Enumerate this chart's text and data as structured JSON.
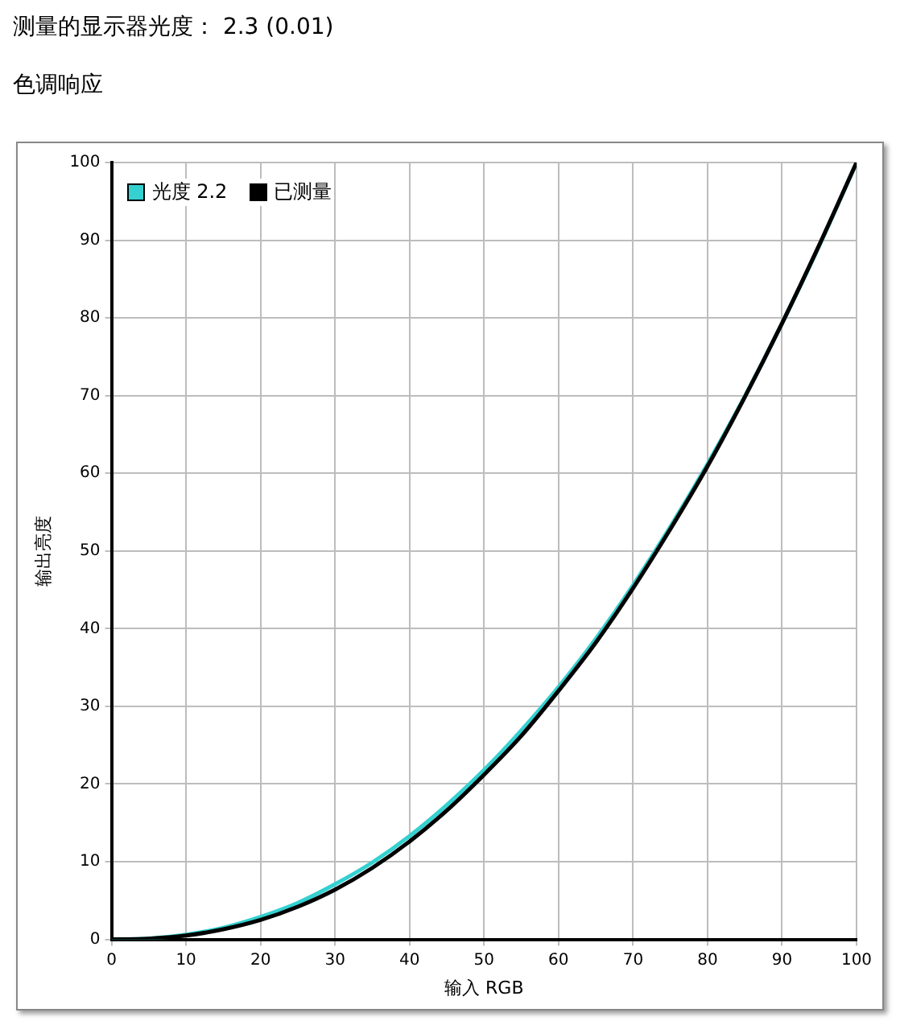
{
  "chart_data": {
    "type": "line",
    "title": "测量的显示器光度： 2.3 (0.01)",
    "subtitle": "色调响应",
    "xlabel": "输入 RGB",
    "ylabel": "输出亮度",
    "x": [
      0,
      5,
      10,
      15,
      20,
      25,
      30,
      35,
      40,
      45,
      50,
      55,
      60,
      65,
      70,
      75,
      80,
      85,
      90,
      95,
      100
    ],
    "series": [
      {
        "name": "光度 2.2",
        "color": "#35d0d0",
        "values": [
          0,
          0.1,
          0.6,
          1.5,
          2.9,
          4.7,
          7.1,
          9.9,
          13.3,
          17.3,
          21.8,
          26.9,
          32.5,
          38.7,
          45.6,
          53.1,
          61.2,
          69.9,
          79.3,
          89.3,
          100
        ]
      },
      {
        "name": "已测量",
        "color": "#000000",
        "values": [
          0,
          0.1,
          0.5,
          1.3,
          2.5,
          4.2,
          6.4,
          9.2,
          12.6,
          16.6,
          21.2,
          26.2,
          32,
          38.2,
          45.2,
          52.8,
          60.9,
          69.8,
          79.3,
          89.4,
          100
        ]
      }
    ],
    "xlim": [
      0,
      100
    ],
    "xticks": [
      0,
      10,
      20,
      30,
      40,
      50,
      60,
      70,
      80,
      90,
      100
    ],
    "ylim": [
      0,
      100
    ],
    "yticks": [
      0,
      10,
      20,
      30,
      40,
      50,
      60,
      70,
      80,
      90,
      100
    ],
    "grid": true,
    "legend": "top left",
    "marker": "none",
    "line_style": "solid"
  }
}
